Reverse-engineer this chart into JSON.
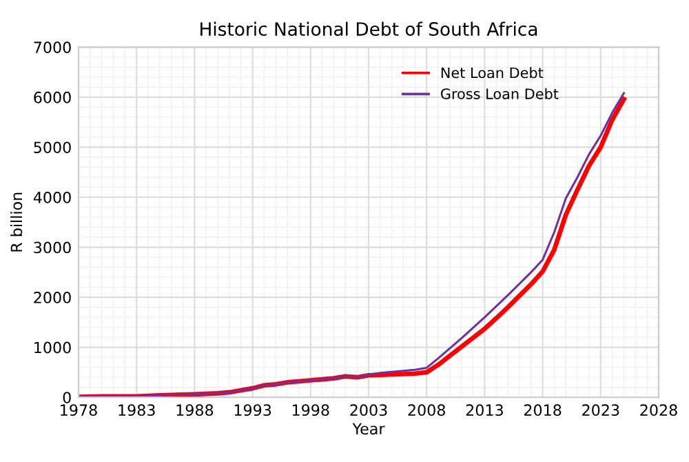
{
  "chart_data": {
    "type": "line",
    "title": "Historic National Debt of South Africa",
    "xlabel": "Year",
    "ylabel": "R billion",
    "x": [
      1978,
      1980,
      1983,
      1985,
      1988,
      1990,
      1991,
      1992,
      1993,
      1994,
      1995,
      1996,
      1997,
      1998,
      1999,
      2000,
      2001,
      2002,
      2003,
      2004,
      2005,
      2006,
      2007,
      2008,
      2009,
      2010,
      2011,
      2012,
      2013,
      2014,
      2015,
      2016,
      2017,
      2018,
      2019,
      2020,
      2021,
      2022,
      2023,
      2024,
      2025
    ],
    "series": [
      {
        "name": "Net Loan Debt",
        "color": "#ff0000",
        "values": [
          10,
          20,
          20,
          40,
          60,
          80,
          100,
          140,
          180,
          240,
          260,
          300,
          320,
          340,
          360,
          380,
          420,
          400,
          440,
          450,
          460,
          465,
          475,
          500,
          650,
          830,
          1010,
          1190,
          1370,
          1580,
          1800,
          2030,
          2260,
          2515,
          2950,
          3650,
          4150,
          4630,
          5000,
          5550,
          5960
        ]
      },
      {
        "name": "Gross Loan Debt",
        "color": "#7030a0",
        "values": [
          10,
          20,
          20,
          40,
          60,
          80,
          100,
          140,
          180,
          240,
          260,
          300,
          320,
          340,
          360,
          380,
          420,
          400,
          450,
          490,
          510,
          530,
          550,
          590,
          780,
          980,
          1180,
          1390,
          1600,
          1820,
          2040,
          2270,
          2500,
          2750,
          3300,
          3980,
          4400,
          4860,
          5230,
          5690,
          6080
        ]
      }
    ],
    "xlim": [
      1978,
      2028
    ],
    "xticks": [
      1978,
      1983,
      1988,
      1993,
      1998,
      2003,
      2008,
      2013,
      2018,
      2023,
      2028
    ],
    "ylim": [
      0,
      7000
    ],
    "yticks": [
      0,
      1000,
      2000,
      3000,
      4000,
      5000,
      6000,
      7000
    ],
    "grid": true,
    "legend": "top right",
    "marker": "none",
    "line_style": "solid"
  }
}
